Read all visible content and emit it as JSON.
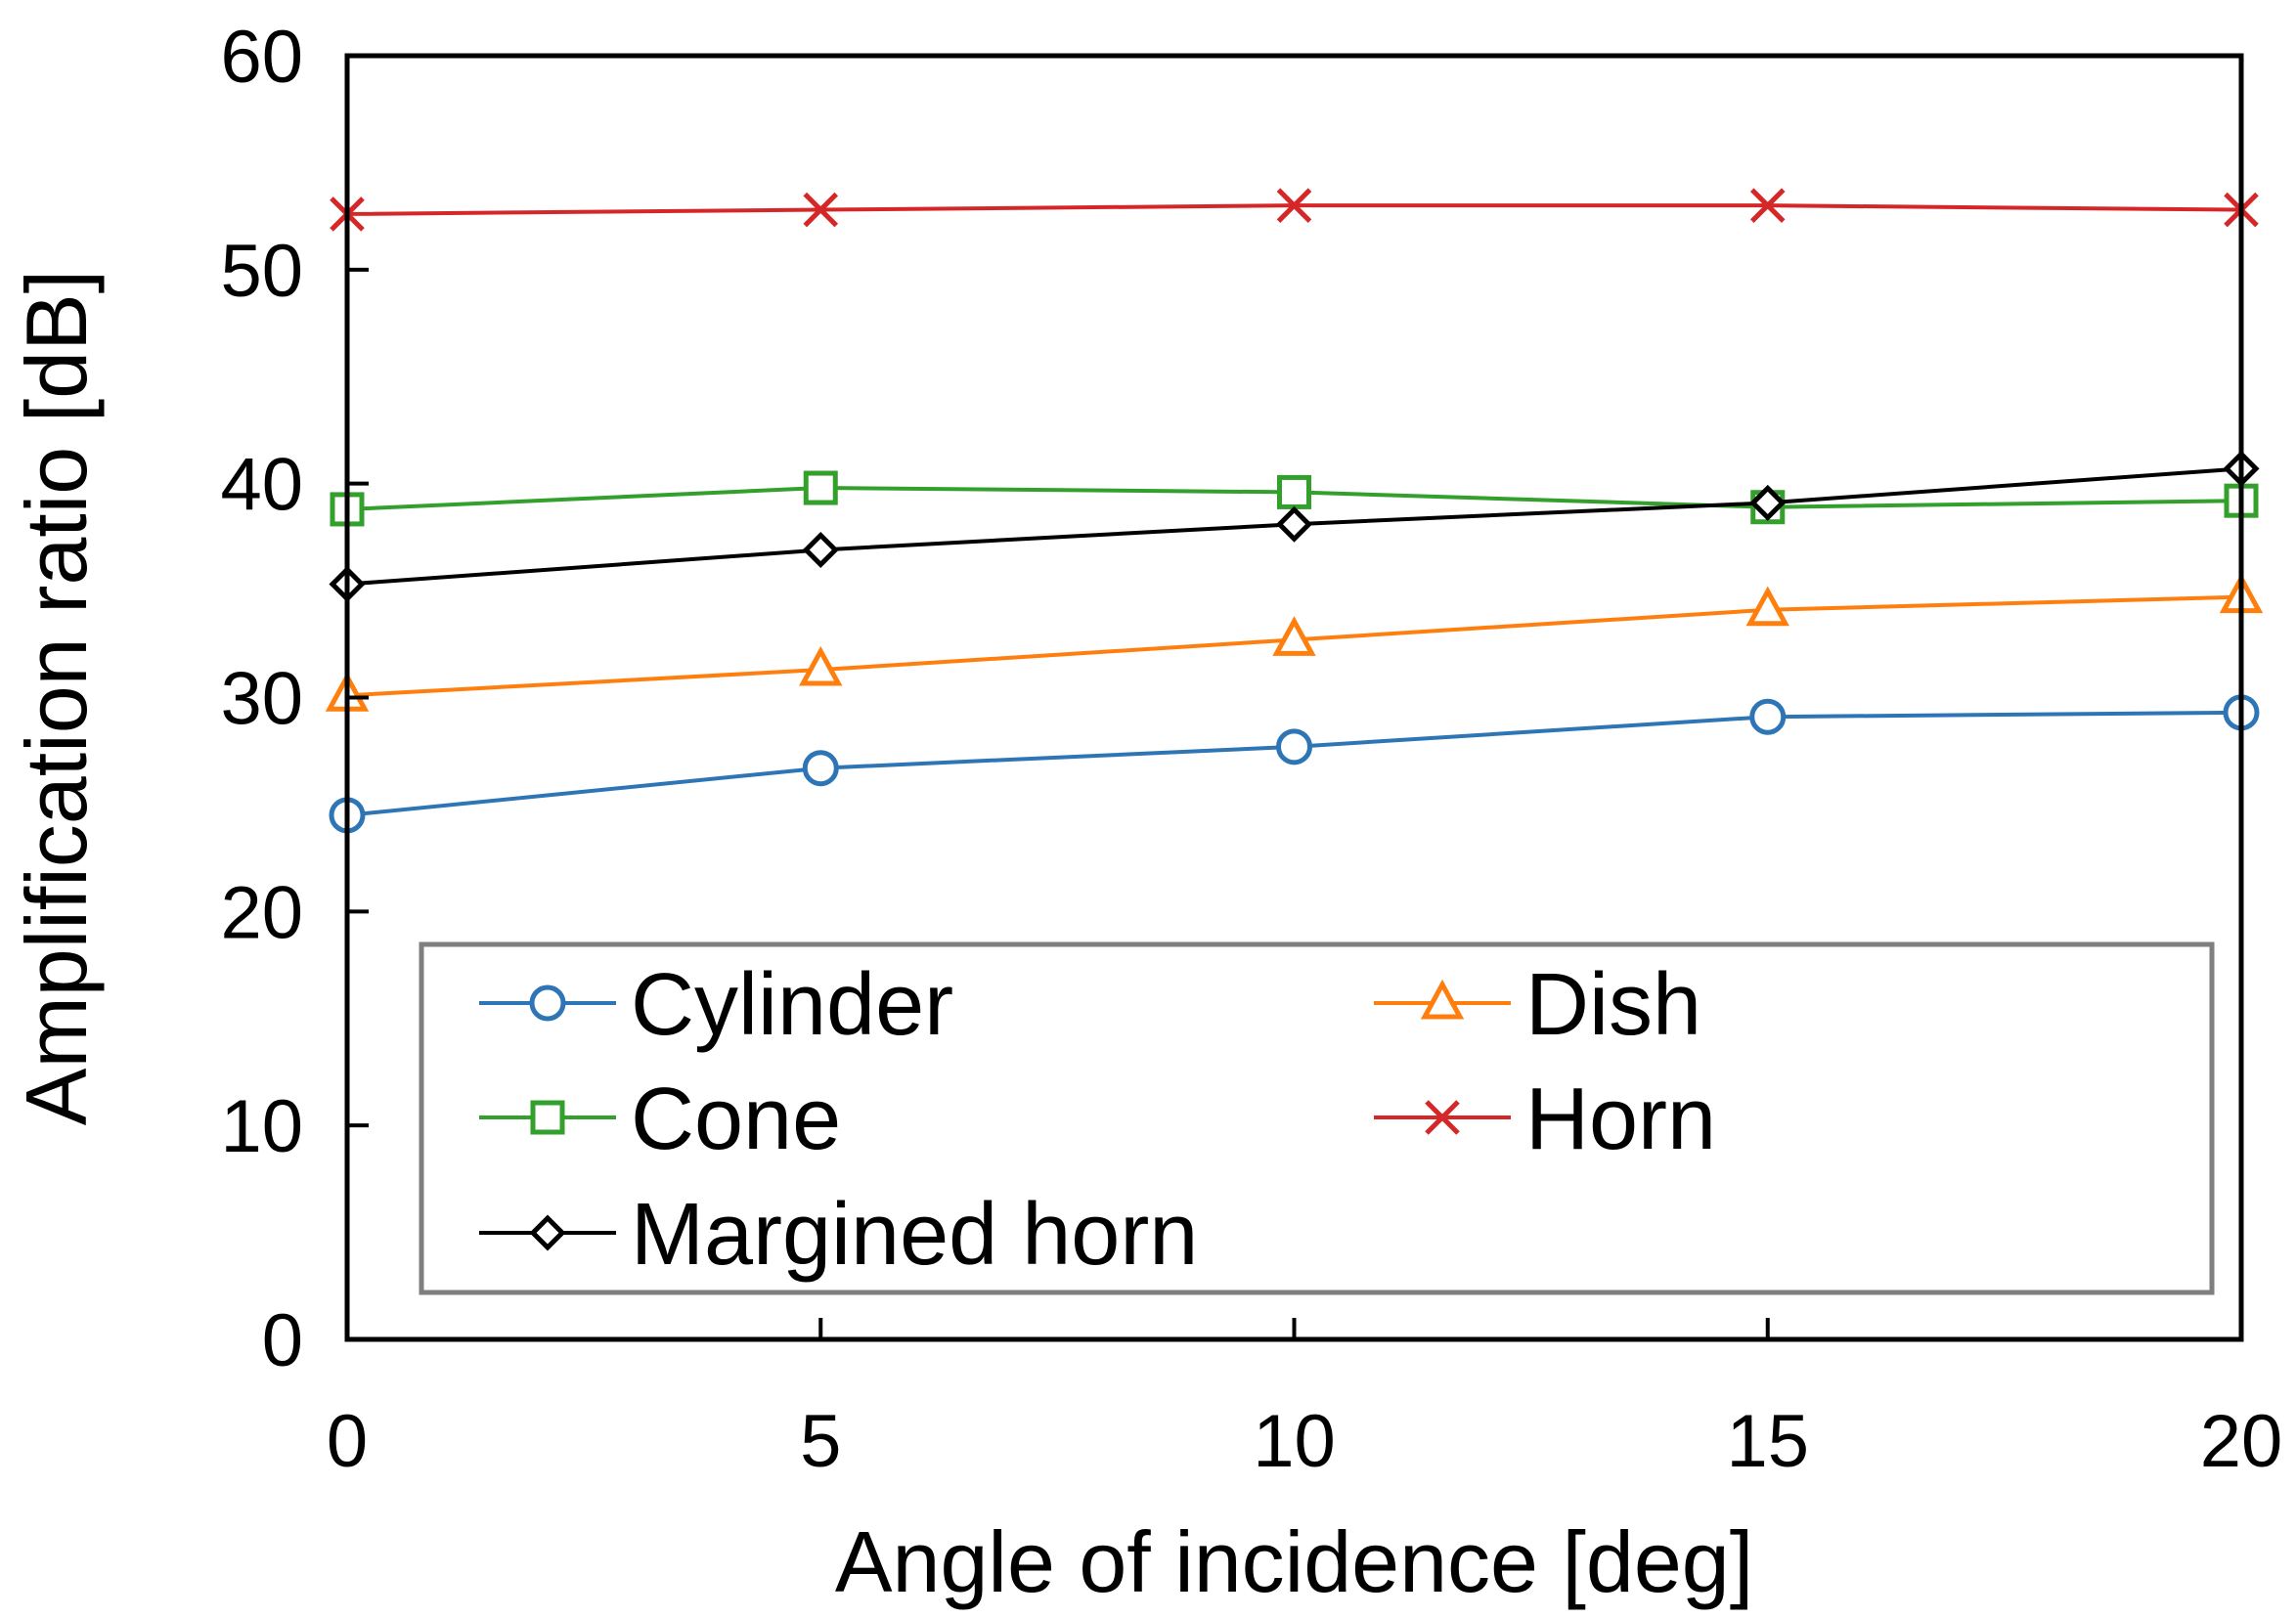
{
  "chart_data": {
    "type": "line",
    "title": "",
    "xlabel": "Angle of incidence [deg]",
    "ylabel": "Amplification ratio [dB]",
    "x": [
      0,
      5,
      10,
      15,
      20
    ],
    "xlim": [
      0,
      20
    ],
    "ylim": [
      0,
      60
    ],
    "xticks": [
      0,
      5,
      10,
      15,
      20
    ],
    "yticks": [
      0,
      10,
      20,
      30,
      40,
      50,
      60
    ],
    "grid": false,
    "legend_position": "lower-center inside",
    "series": [
      {
        "name": "Cylinder",
        "values": [
          24.5,
          26.7,
          27.7,
          29.1,
          29.3
        ],
        "color": "#2e75b6",
        "marker": "circle"
      },
      {
        "name": "Dish",
        "values": [
          30.1,
          31.3,
          32.7,
          34.1,
          34.7
        ],
        "color": "#ff7f0e",
        "marker": "triangle"
      },
      {
        "name": "Cone",
        "values": [
          38.8,
          39.8,
          39.6,
          38.9,
          39.2
        ],
        "color": "#33a02c",
        "marker": "square"
      },
      {
        "name": "Horn",
        "values": [
          52.6,
          52.8,
          53.0,
          53.0,
          52.8
        ],
        "color": "#d62728",
        "marker": "x"
      },
      {
        "name": "Margined horn",
        "values": [
          35.3,
          36.9,
          38.1,
          39.1,
          40.7
        ],
        "color": "#000000",
        "marker": "diamond"
      }
    ]
  }
}
